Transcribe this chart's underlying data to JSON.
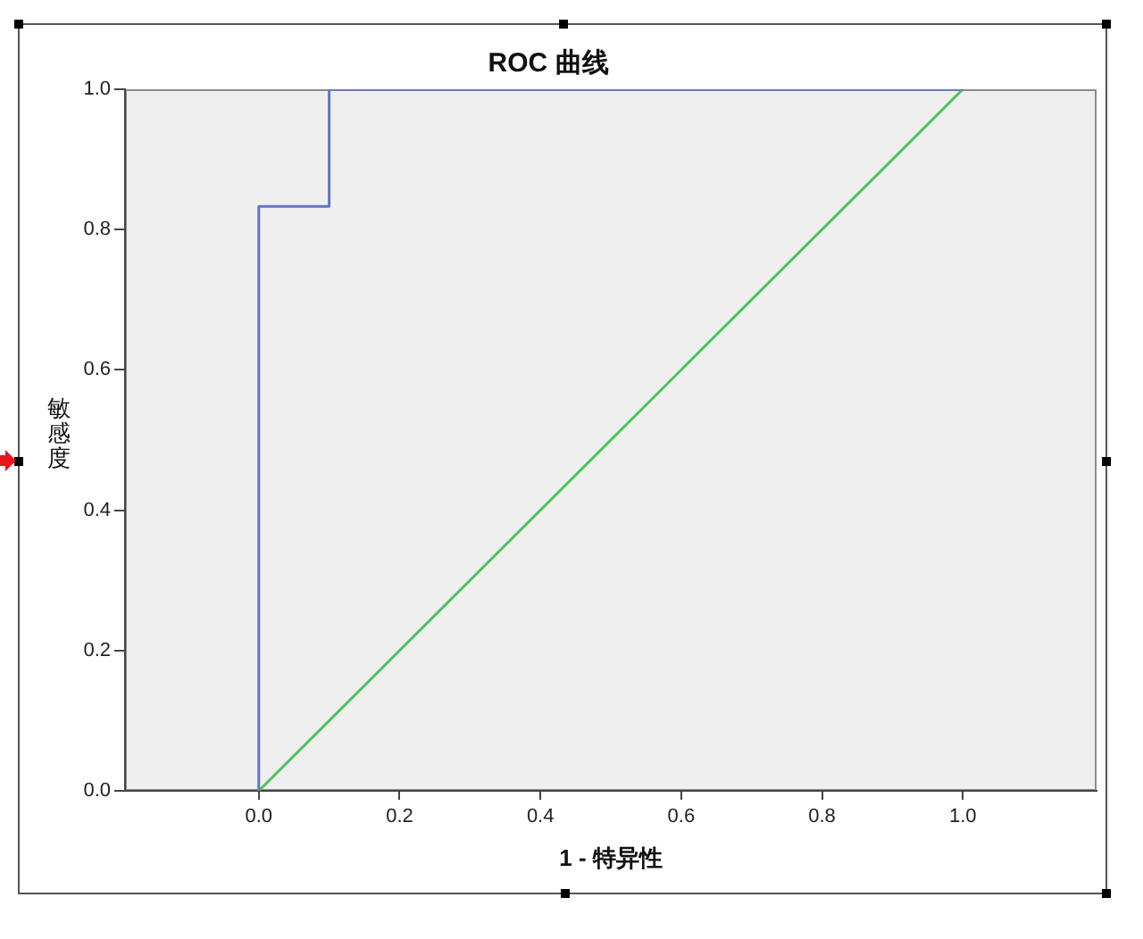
{
  "chart_data": {
    "type": "line",
    "title": "ROC 曲线",
    "xlabel": "1 - 特异性",
    "ylabel": "敏感度",
    "xlim": [
      -0.19,
      1.19
    ],
    "xticks": [
      {
        "value": 0,
        "label": "0.0"
      },
      {
        "value": 0.2,
        "label": "0.2"
      },
      {
        "value": 0.4,
        "label": "0.4"
      },
      {
        "value": 0.6,
        "label": "0.6"
      },
      {
        "value": 0.8,
        "label": "0.8"
      },
      {
        "value": 1,
        "label": "1.0"
      }
    ],
    "ylim": [
      0,
      1
    ],
    "yticks": [
      {
        "value": 0,
        "label": "0.0"
      },
      {
        "value": 0.2,
        "label": "0.2"
      },
      {
        "value": 0.4,
        "label": "0.4"
      },
      {
        "value": 0.6,
        "label": "0.6"
      },
      {
        "value": 0.8,
        "label": "0.8"
      },
      {
        "value": 1,
        "label": "1.0"
      }
    ],
    "grid": false,
    "legend": false,
    "marker": "none",
    "series": [
      {
        "color": "#6475c8",
        "x": [
          0,
          0,
          0.1,
          0.1,
          1
        ],
        "values": [
          0,
          0.833,
          0.833,
          1,
          1
        ]
      },
      {
        "color": "#4cc35a",
        "x": [
          0,
          1
        ],
        "values": [
          0,
          1
        ]
      }
    ]
  }
}
